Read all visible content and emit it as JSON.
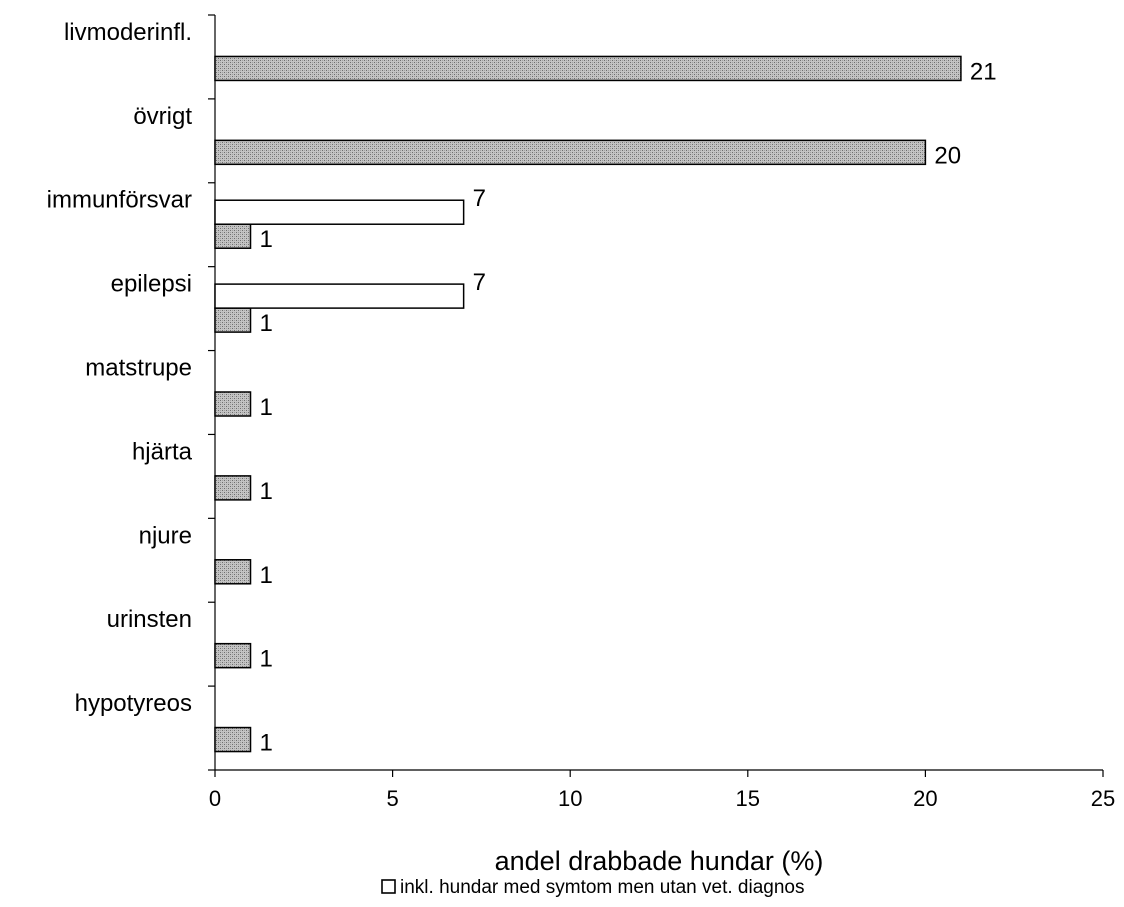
{
  "chart_data": {
    "type": "bar",
    "orientation": "horizontal",
    "categories": [
      "livmoderinfl.",
      "övrigt",
      "immunförsvar",
      "epilepsi",
      "matstrupe",
      "hjärta",
      "njure",
      "urinsten",
      "hypotyreos"
    ],
    "series": [
      {
        "name": "",
        "fill": "pattern-gray",
        "values": [
          21,
          20,
          1,
          1,
          1,
          1,
          1,
          1,
          1
        ]
      },
      {
        "name": "inkl. hundar med symtom men utan vet. diagnos",
        "fill": "#ffffff",
        "values": [
          null,
          null,
          7,
          7,
          null,
          null,
          null,
          null,
          null
        ]
      }
    ],
    "xlabel": "andel drabbade hundar (%)",
    "xlim": [
      0,
      25
    ],
    "xticks": [
      0,
      5,
      10,
      15,
      20,
      25
    ],
    "ylabel": "",
    "title": "",
    "grid": false,
    "legend_position": "bottom",
    "legend_entries": [
      "inkl. hundar med symtom men utan vet. diagnos"
    ]
  }
}
